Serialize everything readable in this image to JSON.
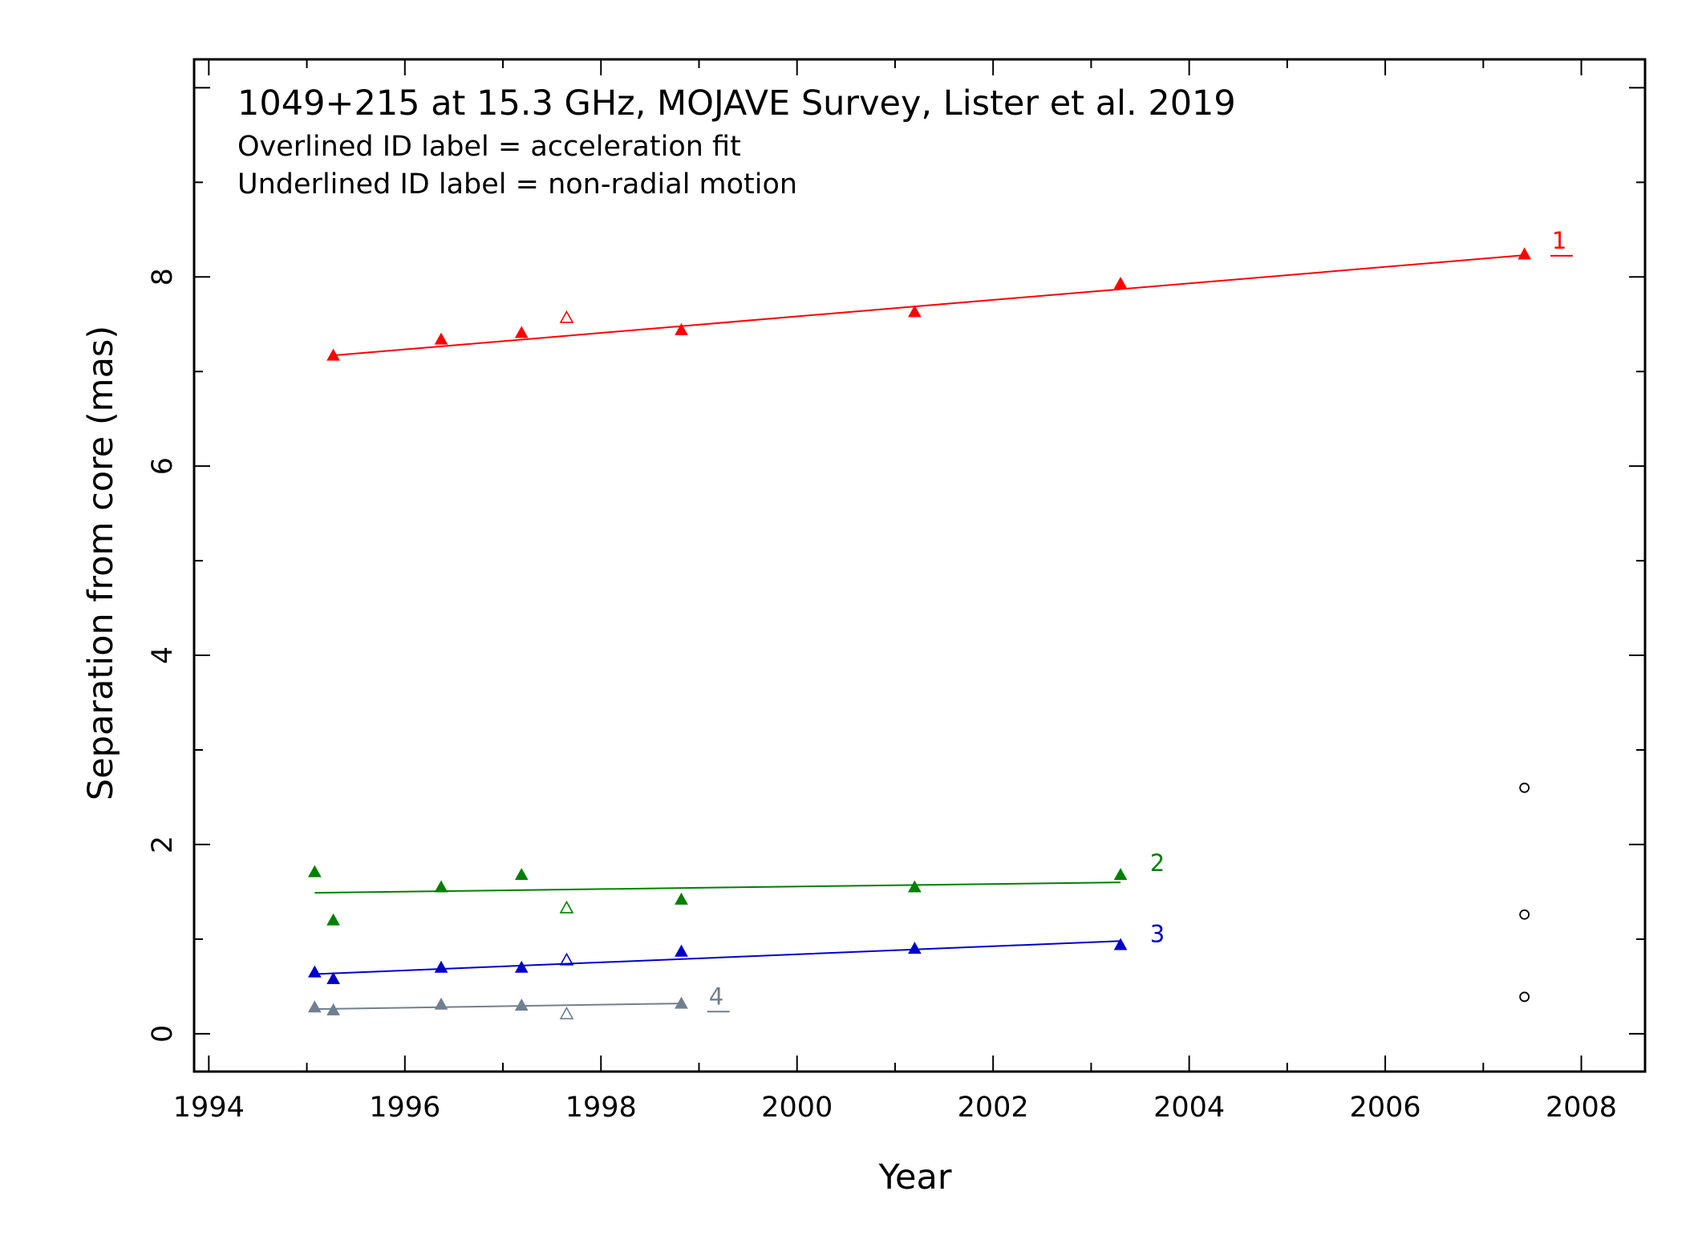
{
  "chart_data": {
    "type": "scatter",
    "title": "1049+215 at 15.3 GHz, MOJAVE Survey, Lister et al. 2019",
    "notes": [
      "Overlined ID label = acceleration fit",
      "Underlined ID label = non-radial motion"
    ],
    "xlabel": "Year",
    "ylabel": "Separation from core (mas)",
    "xlim": [
      1993.85,
      2008.65
    ],
    "ylim": [
      -0.4,
      10.3
    ],
    "x_ticks": [
      1994,
      1996,
      1998,
      2000,
      2002,
      2004,
      2006,
      2008
    ],
    "y_ticks": [
      0,
      2,
      4,
      6,
      8
    ],
    "grid": false,
    "series": [
      {
        "name": "1",
        "color": "#ff0000",
        "label_underlined": true,
        "label_pos": [
          2007.7,
          8.3
        ],
        "points": [
          [
            1995.27,
            7.17
          ],
          [
            1996.37,
            7.34
          ],
          [
            1997.19,
            7.41
          ],
          [
            1998.82,
            7.44
          ],
          [
            2001.2,
            7.63
          ],
          [
            2003.3,
            7.93
          ],
          [
            2007.42,
            8.24
          ]
        ],
        "open_points": [
          [
            1997.65,
            7.57
          ]
        ],
        "fit": [
          [
            1995.27,
            7.17
          ],
          [
            2007.42,
            8.23
          ]
        ]
      },
      {
        "name": "2",
        "color": "#008000",
        "label_underlined": false,
        "label_pos": [
          2003.6,
          1.72
        ],
        "points": [
          [
            1995.08,
            1.71
          ],
          [
            1995.27,
            1.2
          ],
          [
            1996.37,
            1.55
          ],
          [
            1997.19,
            1.68
          ],
          [
            1998.82,
            1.42
          ],
          [
            2001.2,
            1.55
          ],
          [
            2003.3,
            1.68
          ]
        ],
        "open_points": [
          [
            1997.65,
            1.33
          ]
        ],
        "fit": [
          [
            1995.08,
            1.49
          ],
          [
            2003.3,
            1.6
          ]
        ]
      },
      {
        "name": "3",
        "color": "#0000cc",
        "label_underlined": false,
        "label_pos": [
          2003.6,
          0.97
        ],
        "points": [
          [
            1995.08,
            0.65
          ],
          [
            1995.27,
            0.58
          ],
          [
            1996.37,
            0.7
          ],
          [
            1997.19,
            0.7
          ],
          [
            1998.82,
            0.87
          ],
          [
            2001.2,
            0.9
          ],
          [
            2003.3,
            0.94
          ]
        ],
        "open_points": [
          [
            1997.65,
            0.78
          ]
        ],
        "fit": [
          [
            1995.08,
            0.63
          ],
          [
            2003.3,
            0.98
          ]
        ]
      },
      {
        "name": "4",
        "color": "#708090",
        "label_underlined": true,
        "label_pos": [
          1999.1,
          0.31
        ],
        "points": [
          [
            1995.08,
            0.28
          ],
          [
            1995.27,
            0.25
          ],
          [
            1996.37,
            0.31
          ],
          [
            1997.19,
            0.3
          ],
          [
            1998.82,
            0.32
          ]
        ],
        "open_points": [
          [
            1997.65,
            0.21
          ]
        ],
        "fit": [
          [
            1995.08,
            0.26
          ],
          [
            1998.82,
            0.32
          ]
        ]
      }
    ],
    "unassigned_points": {
      "color": "#000000",
      "marker": "open-circle",
      "points": [
        [
          2007.42,
          2.6
        ],
        [
          2007.42,
          1.26
        ],
        [
          2007.42,
          0.39
        ]
      ]
    }
  }
}
